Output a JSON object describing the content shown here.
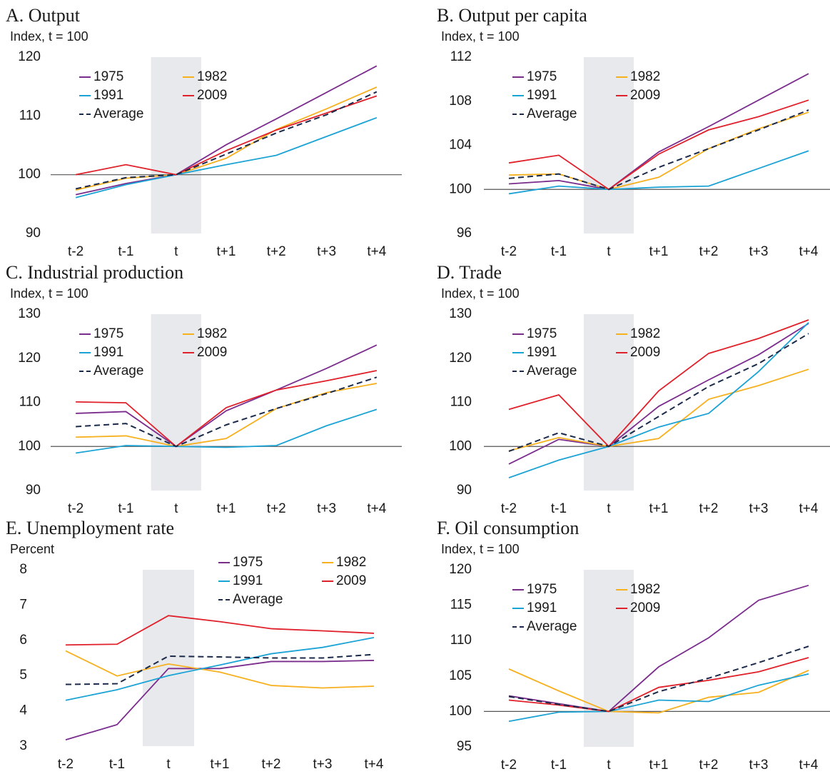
{
  "chart_data": [
    {
      "type": "line",
      "title": "A. Output",
      "y_label": "Index, t = 100",
      "categories": [
        "t-2",
        "t-1",
        "t",
        "t+1",
        "t+2",
        "t+3",
        "t+4"
      ],
      "ylim": [
        90,
        120
      ],
      "yticks": [
        90,
        100,
        110,
        120
      ],
      "hline": 100,
      "highlight": "t",
      "legend": "upper left",
      "series": [
        {
          "name": "1975",
          "color": "#7b2d8e",
          "values": [
            96.6,
            98.5,
            100,
            105.1,
            109.5,
            114,
            118.5
          ]
        },
        {
          "name": "1982",
          "color": "#f7b01e",
          "values": [
            97.4,
            99.4,
            100,
            102.8,
            107.7,
            111.2,
            114.9
          ]
        },
        {
          "name": "1991",
          "color": "#1ba3d6",
          "values": [
            96.1,
            98.3,
            100,
            101.7,
            103.3,
            106.5,
            109.7
          ]
        },
        {
          "name": "2009",
          "color": "#e0202a",
          "values": [
            100,
            101.7,
            100,
            104.1,
            107.6,
            110.5,
            113.4
          ]
        },
        {
          "name": "Average",
          "color": "#1b2a4a",
          "dashed": true,
          "values": [
            97.6,
            99.5,
            100,
            103.5,
            107.1,
            110.2,
            114.1
          ]
        }
      ]
    },
    {
      "type": "line",
      "title": "B. Output per capita",
      "y_label": "Index, t = 100",
      "categories": [
        "t-2",
        "t-1",
        "t",
        "t+1",
        "t+2",
        "t+3",
        "t+4"
      ],
      "ylim": [
        96,
        112
      ],
      "yticks": [
        96,
        100,
        104,
        108,
        112
      ],
      "hline": 100,
      "highlight": "t",
      "legend": "upper left",
      "series": [
        {
          "name": "1975",
          "color": "#7b2d8e",
          "values": [
            100.5,
            100.8,
            100,
            103.4,
            105.7,
            108.1,
            110.5
          ]
        },
        {
          "name": "1982",
          "color": "#f7b01e",
          "values": [
            101.3,
            101.4,
            100,
            101.1,
            103.7,
            105.5,
            107.0
          ]
        },
        {
          "name": "1991",
          "color": "#1ba3d6",
          "values": [
            99.6,
            100.3,
            100,
            100.2,
            100.3,
            101.9,
            103.5
          ]
        },
        {
          "name": "2009",
          "color": "#e0202a",
          "values": [
            102.4,
            103.1,
            100,
            103.2,
            105.4,
            106.6,
            108.1
          ]
        },
        {
          "name": "Average",
          "color": "#1b2a4a",
          "dashed": true,
          "values": [
            101.0,
            101.4,
            100,
            102.0,
            103.7,
            105.4,
            107.2
          ]
        }
      ]
    },
    {
      "type": "line",
      "title": "C. Industrial production",
      "y_label": "Index, t = 100",
      "categories": [
        "t-2",
        "t-1",
        "t",
        "t+1",
        "t+2",
        "t+3",
        "t+4"
      ],
      "ylim": [
        90,
        130
      ],
      "yticks": [
        90,
        100,
        110,
        120,
        130
      ],
      "hline": 100,
      "highlight": "t",
      "legend": "upper left",
      "series": [
        {
          "name": "1975",
          "color": "#7b2d8e",
          "values": [
            107.5,
            107.9,
            100,
            108.1,
            112.8,
            117.7,
            123.0
          ]
        },
        {
          "name": "1982",
          "color": "#f7b01e",
          "values": [
            102.1,
            102.4,
            100,
            101.8,
            108.6,
            112.2,
            114.3
          ]
        },
        {
          "name": "1991",
          "color": "#1ba3d6",
          "values": [
            98.5,
            100.2,
            100,
            99.8,
            100.2,
            104.7,
            108.4
          ]
        },
        {
          "name": "2009",
          "color": "#e0202a",
          "values": [
            110.1,
            109.9,
            100,
            108.8,
            112.8,
            114.9,
            117.2
          ]
        },
        {
          "name": "Average",
          "color": "#1b2a4a",
          "dashed": true,
          "values": [
            104.5,
            105.2,
            100,
            104.9,
            108.6,
            112.0,
            115.7
          ]
        }
      ]
    },
    {
      "type": "line",
      "title": "D. Trade",
      "y_label": "Index, t = 100",
      "categories": [
        "t-2",
        "t-1",
        "t",
        "t+1",
        "t+2",
        "t+3",
        "t+4"
      ],
      "ylim": [
        90,
        130
      ],
      "yticks": [
        90,
        100,
        110,
        120,
        130
      ],
      "hline": 100,
      "highlight": "t",
      "legend": "upper left",
      "series": [
        {
          "name": "1975",
          "color": "#7b2d8e",
          "values": [
            96.0,
            101.6,
            100,
            109.1,
            115.1,
            120.8,
            127.9
          ]
        },
        {
          "name": "1982",
          "color": "#f7b01e",
          "values": [
            99.0,
            102.0,
            100,
            101.8,
            110.7,
            113.8,
            117.5
          ]
        },
        {
          "name": "1991",
          "color": "#1ba3d6",
          "values": [
            92.9,
            96.9,
            100,
            104.4,
            107.5,
            117.0,
            128.1
          ]
        },
        {
          "name": "2009",
          "color": "#e0202a",
          "values": [
            108.4,
            111.7,
            100,
            112.6,
            121.1,
            124.5,
            128.7
          ]
        },
        {
          "name": "Average",
          "color": "#1b2a4a",
          "dashed": true,
          "values": [
            98.9,
            103.1,
            100,
            106.8,
            113.6,
            118.8,
            125.6
          ]
        }
      ]
    },
    {
      "type": "line",
      "title": "E. Unemployment rate",
      "y_label": "Percent",
      "categories": [
        "t-2",
        "t-1",
        "t",
        "t+1",
        "t+2",
        "t+3",
        "t+4"
      ],
      "ylim": [
        3,
        8
      ],
      "yticks": [
        3,
        4,
        5,
        6,
        7,
        8
      ],
      "highlight": "t",
      "legend": "upper right",
      "series": [
        {
          "name": "1975",
          "color": "#7b2d8e",
          "values": [
            3.18,
            3.61,
            5.2,
            5.2,
            5.4,
            5.4,
            5.43
          ]
        },
        {
          "name": "1982",
          "color": "#f7b01e",
          "values": [
            5.7,
            4.99,
            5.33,
            5.1,
            4.72,
            4.65,
            4.7
          ]
        },
        {
          "name": "1991",
          "color": "#1ba3d6",
          "values": [
            4.3,
            4.6,
            5.0,
            5.3,
            5.62,
            5.8,
            6.08
          ]
        },
        {
          "name": "2009",
          "color": "#e0202a",
          "values": [
            5.87,
            5.89,
            6.7,
            6.53,
            6.33,
            6.27,
            6.2
          ]
        },
        {
          "name": "Average",
          "color": "#1b2a4a",
          "dashed": true,
          "values": [
            4.75,
            4.77,
            5.55,
            5.53,
            5.5,
            5.5,
            5.6
          ]
        }
      ]
    },
    {
      "type": "line",
      "title": "F. Oil consumption",
      "y_label": "Index, t = 100",
      "categories": [
        "t-2",
        "t-1",
        "t",
        "t+1",
        "t+2",
        "t+3",
        "t+4"
      ],
      "ylim": [
        95,
        120
      ],
      "yticks": [
        95,
        100,
        105,
        110,
        115,
        120
      ],
      "hline": 100,
      "highlight": "t",
      "legend": "upper left",
      "series": [
        {
          "name": "1975",
          "color": "#7b2d8e",
          "values": [
            102.2,
            101.1,
            100,
            106.3,
            110.4,
            115.7,
            117.8
          ]
        },
        {
          "name": "1982",
          "color": "#f7b01e",
          "values": [
            106.0,
            102.9,
            100,
            99.8,
            102.0,
            102.7,
            105.8
          ]
        },
        {
          "name": "1991",
          "color": "#1ba3d6",
          "values": [
            98.6,
            99.9,
            100,
            101.6,
            101.4,
            103.7,
            105.3
          ]
        },
        {
          "name": "2009",
          "color": "#e0202a",
          "values": [
            101.6,
            100.9,
            100,
            103.4,
            104.4,
            105.6,
            107.6
          ]
        },
        {
          "name": "Average",
          "color": "#1b2a4a",
          "dashed": true,
          "values": [
            102.1,
            101.0,
            100,
            102.8,
            104.7,
            106.9,
            109.2
          ]
        }
      ]
    }
  ]
}
